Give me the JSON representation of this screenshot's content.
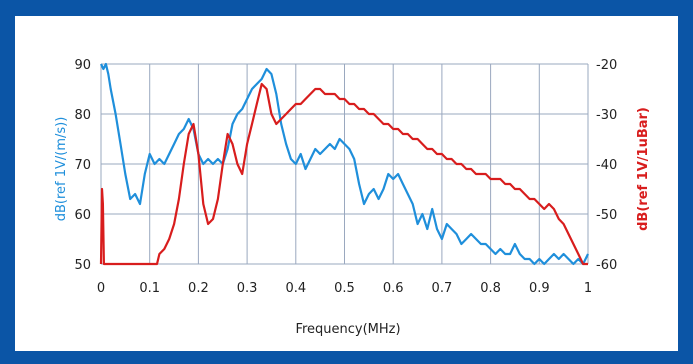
{
  "colors": {
    "background": "#0b55a6",
    "plot_bg": "#ffffff",
    "grid": "#9aa8bf",
    "left_series": "#1f8fdb",
    "right_series": "#d81d1d"
  },
  "chart_data": {
    "type": "line",
    "title": "",
    "xlabel": "Frequency(MHz)",
    "ylabel": "dB(ref 1V/(m/s))",
    "ylabel_right": "dB(ref  1V/1uBar)",
    "xlim": [
      0,
      1
    ],
    "ylim": [
      50,
      90
    ],
    "ylim_right": [
      -60,
      -20
    ],
    "x_ticks": [
      "0",
      "0.1",
      "0.2",
      "0.3",
      "0.4",
      "0.5",
      "0.6",
      "0.7",
      "0.8",
      "0.9",
      "1"
    ],
    "y_ticks": [
      "90",
      "80",
      "70",
      "60",
      "50"
    ],
    "y_ticks_right": [
      "-20",
      "-30",
      "-40",
      "-50",
      "-60"
    ],
    "grid": true,
    "legend": "none",
    "series": [
      {
        "axis": "left",
        "color": "#1f8fdb",
        "x": [
          0,
          0.005,
          0.01,
          0.015,
          0.02,
          0.03,
          0.04,
          0.05,
          0.06,
          0.07,
          0.08,
          0.09,
          0.1,
          0.11,
          0.12,
          0.13,
          0.14,
          0.15,
          0.16,
          0.17,
          0.18,
          0.19,
          0.2,
          0.21,
          0.22,
          0.23,
          0.24,
          0.25,
          0.26,
          0.27,
          0.28,
          0.29,
          0.3,
          0.31,
          0.32,
          0.33,
          0.34,
          0.35,
          0.36,
          0.37,
          0.38,
          0.39,
          0.4,
          0.41,
          0.42,
          0.43,
          0.44,
          0.45,
          0.46,
          0.47,
          0.48,
          0.49,
          0.5,
          0.51,
          0.52,
          0.53,
          0.54,
          0.55,
          0.56,
          0.57,
          0.58,
          0.59,
          0.6,
          0.61,
          0.62,
          0.63,
          0.64,
          0.65,
          0.66,
          0.67,
          0.68,
          0.69,
          0.7,
          0.71,
          0.72,
          0.73,
          0.74,
          0.75,
          0.76,
          0.77,
          0.78,
          0.79,
          0.8,
          0.81,
          0.82,
          0.83,
          0.84,
          0.85,
          0.86,
          0.87,
          0.88,
          0.89,
          0.9,
          0.91,
          0.92,
          0.93,
          0.94,
          0.95,
          0.96,
          0.97,
          0.98,
          0.99,
          1.0
        ],
        "y": [
          90,
          89,
          90,
          88,
          85,
          80,
          74,
          68,
          63,
          64,
          62,
          68,
          72,
          70,
          71,
          70,
          72,
          74,
          76,
          77,
          79,
          77,
          72,
          70,
          71,
          70,
          71,
          70,
          73,
          78,
          80,
          81,
          83,
          85,
          86,
          87,
          89,
          88,
          84,
          78,
          74,
          71,
          70,
          72,
          69,
          71,
          73,
          72,
          73,
          74,
          73,
          75,
          74,
          73,
          71,
          66,
          62,
          64,
          65,
          63,
          65,
          68,
          67,
          68,
          66,
          64,
          62,
          58,
          60,
          57,
          61,
          57,
          55,
          58,
          57,
          56,
          54,
          55,
          56,
          55,
          54,
          54,
          53,
          52,
          53,
          52,
          52,
          54,
          52,
          51,
          51,
          50,
          51,
          50,
          51,
          52,
          51,
          52,
          51,
          50,
          51,
          50,
          52
        ]
      },
      {
        "axis": "right",
        "color": "#d81d1d",
        "x": [
          0.0,
          0.002,
          0.004,
          0.006,
          0.115,
          0.12,
          0.13,
          0.14,
          0.15,
          0.16,
          0.17,
          0.18,
          0.19,
          0.2,
          0.21,
          0.22,
          0.23,
          0.24,
          0.25,
          0.26,
          0.27,
          0.28,
          0.29,
          0.3,
          0.31,
          0.32,
          0.33,
          0.34,
          0.35,
          0.36,
          0.37,
          0.38,
          0.39,
          0.4,
          0.41,
          0.42,
          0.43,
          0.44,
          0.45,
          0.46,
          0.47,
          0.48,
          0.49,
          0.5,
          0.51,
          0.52,
          0.53,
          0.54,
          0.55,
          0.56,
          0.57,
          0.58,
          0.59,
          0.6,
          0.61,
          0.62,
          0.63,
          0.64,
          0.65,
          0.66,
          0.67,
          0.68,
          0.69,
          0.7,
          0.71,
          0.72,
          0.73,
          0.74,
          0.75,
          0.76,
          0.77,
          0.78,
          0.79,
          0.8,
          0.81,
          0.82,
          0.83,
          0.84,
          0.85,
          0.86,
          0.87,
          0.88,
          0.89,
          0.9,
          0.91,
          0.92,
          0.93,
          0.94,
          0.95,
          0.96,
          0.97,
          0.98,
          0.99,
          1.0
        ],
        "y": [
          -60,
          -45,
          -48,
          -60,
          -60,
          -58,
          -57,
          -55,
          -52,
          -47,
          -40,
          -34,
          -32,
          -38,
          -48,
          -52,
          -51,
          -47,
          -40,
          -34,
          -36,
          -40,
          -42,
          -36,
          -32,
          -28,
          -24,
          -25,
          -30,
          -32,
          -31,
          -30,
          -29,
          -28,
          -28,
          -27,
          -26,
          -25,
          -25,
          -26,
          -26,
          -26,
          -27,
          -27,
          -28,
          -28,
          -29,
          -29,
          -30,
          -30,
          -31,
          -32,
          -32,
          -33,
          -33,
          -34,
          -34,
          -35,
          -35,
          -36,
          -37,
          -37,
          -38,
          -38,
          -39,
          -39,
          -40,
          -40,
          -41,
          -41,
          -42,
          -42,
          -42,
          -43,
          -43,
          -43,
          -44,
          -44,
          -45,
          -45,
          -46,
          -47,
          -47,
          -48,
          -49,
          -48,
          -49,
          -51,
          -52,
          -54,
          -56,
          -58,
          -60,
          -60
        ]
      }
    ]
  }
}
